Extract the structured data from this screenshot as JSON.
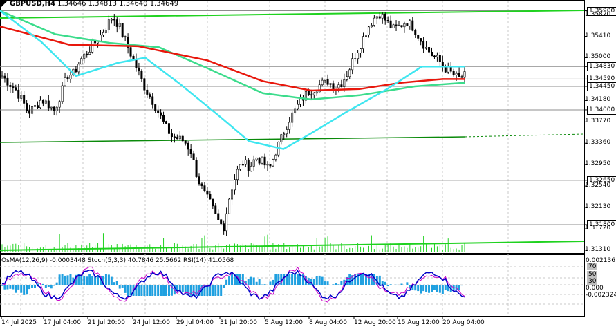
{
  "header": {
    "symbol": "GBPUSD,H4",
    "ohlc": "1.34646 1.34813 1.34640 1.34649"
  },
  "indicator_header": "OsMA(12,26,9) -0.0003448  Stoch(5,3,3) 40.7846 25.5662  RSI(14) 41.0568",
  "price_axis": [
    {
      "label": "1.35900",
      "boxed": true
    },
    {
      "label": "1.35820",
      "boxed": false
    },
    {
      "label": "1.35410",
      "boxed": false
    },
    {
      "label": "1.35000",
      "boxed": false
    },
    {
      "label": "1.34830",
      "boxed": true
    },
    {
      "label": "1.34590",
      "boxed": true
    },
    {
      "label": "1.34450",
      "boxed": true
    },
    {
      "label": "1.34180",
      "boxed": false
    },
    {
      "label": "1.34000",
      "boxed": true
    },
    {
      "label": "1.33770",
      "boxed": false
    },
    {
      "label": "1.33360",
      "boxed": false
    },
    {
      "label": "1.32950",
      "boxed": false
    },
    {
      "label": "1.32650",
      "boxed": true
    },
    {
      "label": "1.32540",
      "boxed": false
    },
    {
      "label": "1.32130",
      "boxed": false
    },
    {
      "label": "1.31800",
      "boxed": true
    },
    {
      "label": "1.31720",
      "boxed": false
    },
    {
      "label": "1.31310",
      "boxed": false
    }
  ],
  "indicator_axis": [
    {
      "label": "0.002136",
      "boxed": false
    },
    {
      "label": "70",
      "boxed": true
    },
    {
      "label": "50",
      "boxed": true
    },
    {
      "label": "30",
      "boxed": true
    },
    {
      "label": "0.000",
      "boxed": false
    },
    {
      "label": "-0.002324",
      "boxed": false
    }
  ],
  "time_axis": [
    "14 Jul 2025",
    "17 Jul 04:00",
    "21 Jul 20:00",
    "24 Jul 12:00",
    "29 Jul 04:00",
    "31 Jul 20:00",
    "5 Aug 12:00",
    "8 Aug 04:00",
    "12 Aug 20:00",
    "15 Aug 12:00",
    "20 Aug 04:00"
  ],
  "colors": {
    "candle": "#000000",
    "ma_red": "#e8170c",
    "ma_green": "#3cdc8c",
    "ma_cyan": "#3fe6f0",
    "trend_green": "#1fd21f",
    "volume": "#1fd21f",
    "osma": "#1fa0e0",
    "stoch_main": "#0000c8",
    "stoch_signal": "#c800c8",
    "grid": "#c8c8c8"
  },
  "chart_data": {
    "type": "candlestick",
    "symbol": "GBPUSD",
    "timeframe": "H4",
    "ylim": [
      1.3131,
      1.36
    ],
    "horizontal_levels": [
      1.359,
      1.3483,
      1.3459,
      1.3445,
      1.34,
      1.3265,
      1.318
    ],
    "price_path_close": [
      1.3465,
      1.3452,
      1.344,
      1.342,
      1.3395,
      1.3405,
      1.342,
      1.3412,
      1.3398,
      1.343,
      1.3465,
      1.347,
      1.3495,
      1.351,
      1.3525,
      1.354,
      1.356,
      1.358,
      1.356,
      1.353,
      1.35,
      1.347,
      1.344,
      1.342,
      1.3395,
      1.337,
      1.335,
      1.3345,
      1.334,
      1.332,
      1.327,
      1.324,
      1.322,
      1.319,
      1.3175,
      1.324,
      1.328,
      1.33,
      1.329,
      1.331,
      1.33,
      1.3285,
      1.332,
      1.335,
      1.338,
      1.34,
      1.342,
      1.3435,
      1.344,
      1.345,
      1.3455,
      1.3445,
      1.345,
      1.347,
      1.35,
      1.3525,
      1.3555,
      1.3575,
      1.3585,
      1.357,
      1.3555,
      1.356,
      1.357,
      1.356,
      1.354,
      1.352,
      1.3505,
      1.3495,
      1.348,
      1.347,
      1.346,
      1.3465
    ]
  }
}
